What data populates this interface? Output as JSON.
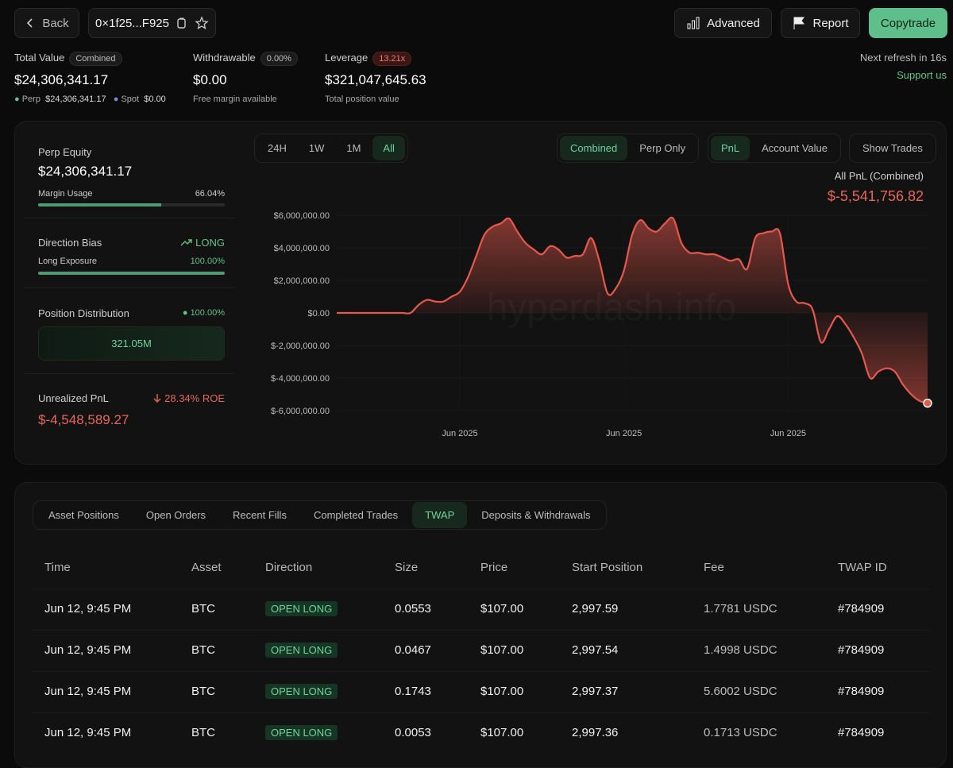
{
  "nav": {
    "back": "Back",
    "address": "0×1f25...F925",
    "advanced": "Advanced",
    "report": "Report",
    "copytrade": "Copytrade"
  },
  "summary": {
    "total_value": {
      "label": "Total Value",
      "badge": "Combined",
      "value": "$24,306,341.17",
      "perp_label": "Perp",
      "perp_value": "$24,306,341.17",
      "spot_label": "Spot",
      "spot_value": "$0.00"
    },
    "withdrawable": {
      "label": "Withdrawable",
      "badge": "0.00%",
      "value": "$0.00",
      "note": "Free margin available"
    },
    "leverage": {
      "label": "Leverage",
      "badge": "13.21x",
      "value": "$321,047,645.63",
      "note": "Total position value"
    },
    "refresh": "Next refresh in 16s",
    "support": "Support us"
  },
  "side": {
    "perp_equity_label": "Perp Equity",
    "perp_equity": "$24,306,341.17",
    "margin_usage_label": "Margin Usage",
    "margin_usage": "66.04%",
    "direction_label": "Direction Bias",
    "direction": "LONG",
    "long_exposure_label": "Long Exposure",
    "long_exposure": "100.00%",
    "distribution_label": "Position Distribution",
    "distribution_share": "100.00%",
    "distribution_value": "321.05M",
    "unrealized_label": "Unrealized PnL",
    "roe": "28.34% ROE",
    "unrealized": "$-4,548,589.27"
  },
  "controls": {
    "ranges": [
      "24H",
      "1W",
      "1M",
      "All"
    ],
    "modes": [
      "Combined",
      "Perp Only"
    ],
    "metrics": [
      "PnL",
      "Account Value"
    ],
    "show_trades": "Show Trades"
  },
  "chart_data": {
    "type": "line",
    "title": "All PnL (Combined)",
    "subtitle": "$-5,541,756.82",
    "watermark": "hyperdash.info",
    "categories": [
      null,
      null,
      null,
      null,
      null,
      null,
      null,
      null,
      null,
      null,
      null,
      null,
      null,
      null,
      null,
      "Jun 2025",
      null,
      null,
      null,
      null,
      null,
      null,
      null,
      null,
      null,
      null,
      null,
      null,
      null,
      null,
      null,
      null,
      null,
      null,
      null,
      "Jun 2025",
      null,
      null,
      null,
      null,
      null,
      null,
      null,
      null,
      null,
      null,
      null,
      null,
      null,
      null,
      null,
      null,
      null,
      null,
      null,
      "Jun 2025",
      null,
      null,
      null,
      null,
      null,
      null,
      null,
      null,
      null,
      null,
      null,
      null,
      null,
      null,
      null,
      null,
      null
    ],
    "series": [
      {
        "name": "PnL",
        "color": "#e5584c",
        "values": [
          0,
          0,
          0,
          0,
          0,
          0,
          0,
          0,
          0,
          0,
          500000,
          800000,
          700000,
          700000,
          1000000,
          1300000,
          2200000,
          3500000,
          4800000,
          5300000,
          5500000,
          5800000,
          5000000,
          4300000,
          3900000,
          3600000,
          4100000,
          3900000,
          3400000,
          3500000,
          3600000,
          4600000,
          3200000,
          1200000,
          1500000,
          2600000,
          4800000,
          5700000,
          5200000,
          5000000,
          5500000,
          5800000,
          4300000,
          3700000,
          3700000,
          3600000,
          3600000,
          3400000,
          3200000,
          3300000,
          2700000,
          4600000,
          4900000,
          5000000,
          4900000,
          1800000,
          700000,
          600000,
          200000,
          -1800000,
          -1000000,
          -200000,
          -700000,
          -1500000,
          -2500000,
          -4000000,
          -3600000,
          -3400000,
          -3600000,
          -4400000,
          -5000000,
          -5400000,
          -5541756.82
        ]
      }
    ],
    "ylim": [
      -6000000,
      6000000
    ],
    "yticks": [
      {
        "value": 6000000,
        "label": "$6,000,000.00"
      },
      {
        "value": 4000000,
        "label": "$4,000,000.00"
      },
      {
        "value": 2000000,
        "label": "$2,000,000.00"
      },
      {
        "value": 0,
        "label": "$0.00"
      },
      {
        "value": -2000000,
        "label": "$-2,000,000.00"
      },
      {
        "value": -4000000,
        "label": "$-4,000,000.00"
      },
      {
        "value": -6000000,
        "label": "$-6,000,000.00"
      }
    ],
    "grid": true
  },
  "tabs": [
    "Asset Positions",
    "Open Orders",
    "Recent Fills",
    "Completed Trades",
    "TWAP",
    "Deposits & Withdrawals"
  ],
  "table": {
    "columns": [
      "Time",
      "Asset",
      "Direction",
      "Size",
      "Price",
      "Start Position",
      "Fee",
      "TWAP ID"
    ],
    "rows": [
      [
        "Jun 12, 9:45 PM",
        "BTC",
        "OPEN LONG",
        "0.0553",
        "$107.00",
        "2,997.59",
        "1.7781 USDC",
        "#784909"
      ],
      [
        "Jun 12, 9:45 PM",
        "BTC",
        "OPEN LONG",
        "0.0467",
        "$107.00",
        "2,997.54",
        "1.4998 USDC",
        "#784909"
      ],
      [
        "Jun 12, 9:45 PM",
        "BTC",
        "OPEN LONG",
        "0.1743",
        "$107.00",
        "2,997.37",
        "5.6002 USDC",
        "#784909"
      ],
      [
        "Jun 12, 9:45 PM",
        "BTC",
        "OPEN LONG",
        "0.0053",
        "$107.00",
        "2,997.36",
        "0.1713 USDC",
        "#784909"
      ]
    ]
  }
}
